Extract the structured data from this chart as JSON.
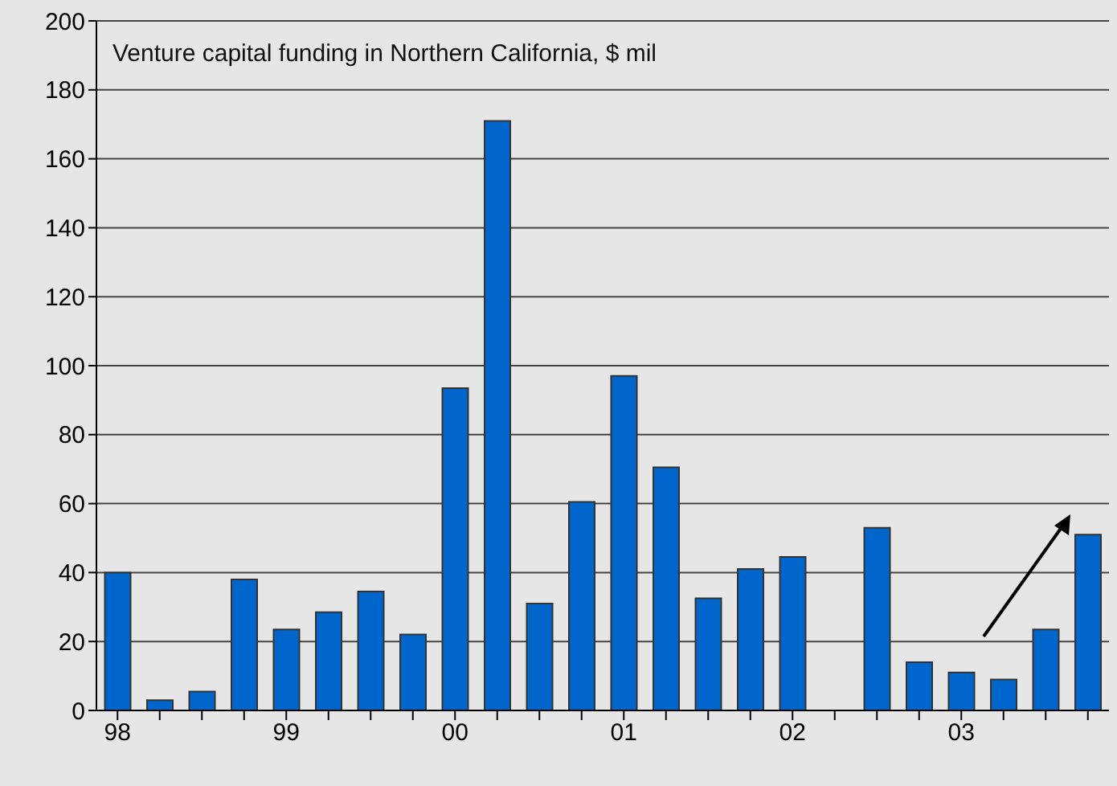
{
  "chart_data": {
    "type": "bar",
    "title": "Venture capital funding in Northern California, $ mil",
    "categories": [
      "98",
      null,
      null,
      null,
      "99",
      null,
      null,
      null,
      "00",
      null,
      null,
      null,
      "01",
      null,
      null,
      null,
      "02",
      null,
      null,
      null,
      "03",
      null,
      null,
      null
    ],
    "values": [
      40,
      3,
      5.5,
      38,
      23.5,
      28.5,
      34.5,
      22,
      93.5,
      171,
      31,
      60.5,
      97,
      70.5,
      32.5,
      41,
      44.5,
      null,
      53,
      14,
      11,
      9,
      23.5,
      51
    ],
    "color": "#0066cc",
    "ylim": [
      0,
      200
    ],
    "yticks": [
      0,
      20,
      40,
      60,
      80,
      100,
      120,
      140,
      160,
      180,
      200
    ],
    "grid": "y"
  }
}
